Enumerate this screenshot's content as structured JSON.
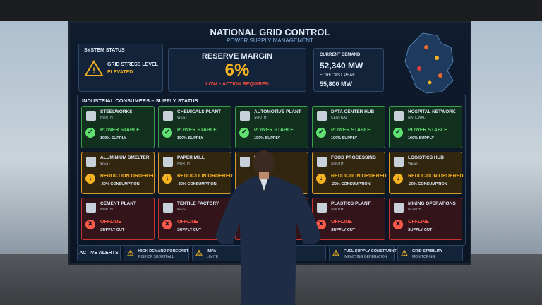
{
  "header": {
    "title": "NATIONAL GRID CONTROL",
    "subtitle": "POWER SUPPLY MANAGEMENT"
  },
  "system_status": {
    "label": "SYSTEM STATUS",
    "line": "GRID STRESS LEVEL",
    "value": "ELEVATED"
  },
  "reserve": {
    "label": "RESERVE MARGIN",
    "value": "6%",
    "note": "LOW – ACTION REQUIRED"
  },
  "demand": {
    "label": "CURRENT DEMAND",
    "value": "52,340 MW",
    "peak_label": "FORECAST PEAK",
    "peak_value": "55,800 MW"
  },
  "consumers": {
    "title": "INDUSTRIAL CONSUMERS – SUPPLY STATUS",
    "rows": [
      [
        {
          "name": "STEELWORKS",
          "region": "NORTH",
          "status": "POWER STABLE",
          "detail": "100% SUPPLY"
        },
        {
          "name": "CHEMICALS PLANT",
          "region": "WEST",
          "status": "POWER STABLE",
          "detail": "100% SUPPLY"
        },
        {
          "name": "AUTOMOTIVE PLANT",
          "region": "SOUTH",
          "status": "POWER STABLE",
          "detail": "100% SUPPLY"
        },
        {
          "name": "DATA CENTER HUB",
          "region": "CENTRAL",
          "status": "POWER STABLE",
          "detail": "100% SUPPLY"
        },
        {
          "name": "HOSPITAL NETWORK",
          "region": "NATIONAL",
          "status": "POWER STABLE",
          "detail": "100% SUPPLY"
        }
      ],
      [
        {
          "name": "ALUMINIUM SMELTER",
          "region": "WEST",
          "status": "Reduction Ordered",
          "detail": "-30% CONSUMPTION"
        },
        {
          "name": "PAPER MILL",
          "region": "NORTH",
          "status": "Reduction Ordered",
          "detail": "-30% CONSUMPTION"
        },
        {
          "name": "PLANT"
        },
        {
          "name": "FOOD PROCESSING",
          "region": "SOUTH",
          "status": "Reduction Ordered",
          "detail": "-20% CONSUMPTION"
        },
        {
          "name": "LOGISTICS HUB",
          "region": "WEST",
          "status": "Reduction Ordered",
          "detail": "-20% CONSUMPTION"
        }
      ],
      [
        {
          "name": "CEMENT PLANT",
          "region": "NORTH",
          "status": "OFFLINE",
          "detail": "SUPPLY CUT"
        },
        {
          "name": "TEXTILE FACTORY",
          "region": "WEST",
          "status": "OFFLINE",
          "detail": "SUPPLY CUT"
        },
        {},
        {
          "name": "PLASTICS PLANT",
          "region": "SOUTH",
          "status": "OFFLINE",
          "detail": "SUPPLY CUT"
        },
        {
          "name": "MINING OPERATIONS",
          "region": "NORTH",
          "status": "OFFLINE",
          "detail": "SUPPLY CUT"
        }
      ]
    ]
  },
  "alerts": {
    "label": "ACTIVE ALERTS",
    "items": [
      {
        "title": "HIGH DEMAND FORECAST",
        "detail": "RISK OF SHORTFALL"
      },
      {
        "title": "IMPA",
        "detail": "LIMITE"
      },
      {},
      {
        "title": "FUEL SUPPLY CONSTRAINTS",
        "detail": "IMPACTING GENERATION"
      },
      {
        "title": "GRID STABILITY",
        "detail": "MONITORING"
      }
    ]
  }
}
